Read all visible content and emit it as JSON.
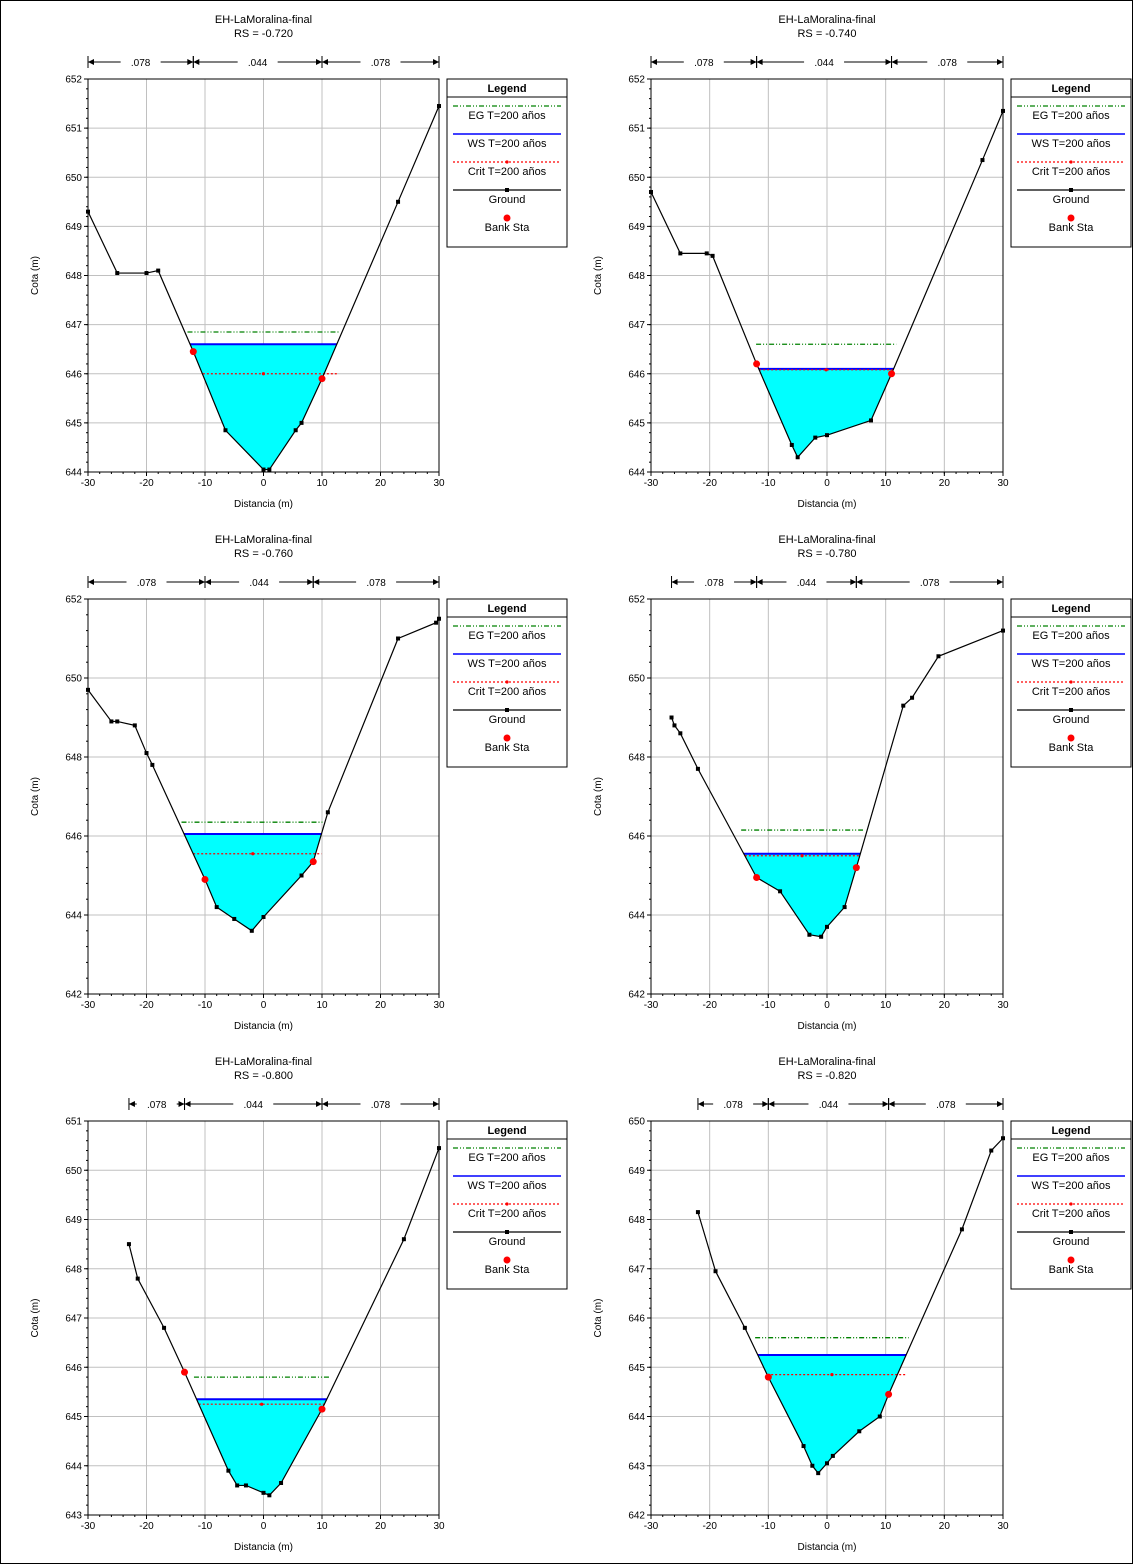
{
  "legend": {
    "title": "Legend",
    "items": [
      {
        "label": "EG T=200 años",
        "color": "#008000",
        "style": "eg"
      },
      {
        "label": "WS T=200 años",
        "color": "#0000ff",
        "style": "ws"
      },
      {
        "label": "Crit T=200 años",
        "color": "#ff0000",
        "style": "crit"
      },
      {
        "label": "Ground",
        "color": "#000000",
        "style": "ground"
      },
      {
        "label": "Bank Sta",
        "color": "#ff0000",
        "style": "bank"
      }
    ]
  },
  "colors": {
    "water": "#00ffff",
    "grid": "#c0c0c0"
  },
  "chart_data": [
    {
      "type": "area",
      "title": "EH-LaMoralina-final",
      "subtitle": "RS = -0.720",
      "xlabel": "Distancia (m)",
      "ylabel": "Cota (m)",
      "xlim": [
        -30,
        30
      ],
      "ylim": [
        644,
        652
      ],
      "xticks": [
        -30,
        -20,
        -10,
        0,
        10,
        20,
        30
      ],
      "yticks": [
        644,
        645,
        646,
        647,
        648,
        649,
        650,
        651,
        652
      ],
      "n_values": [
        {
          "label": ".078",
          "from": -30,
          "to": -12
        },
        {
          "label": ".044",
          "from": -12,
          "to": 10
        },
        {
          "label": ".078",
          "from": 10,
          "to": 30
        }
      ],
      "ground": [
        [
          -30,
          649.3
        ],
        [
          -25,
          648.05
        ],
        [
          -20,
          648.05
        ],
        [
          -18,
          648.1
        ],
        [
          -12,
          646.45
        ],
        [
          -6.5,
          644.85
        ],
        [
          0,
          644.05
        ],
        [
          1,
          644.05
        ],
        [
          5.5,
          644.85
        ],
        [
          6.5,
          645.0
        ],
        [
          10,
          645.9
        ],
        [
          23,
          649.5
        ],
        [
          30,
          651.45
        ]
      ],
      "bank": [
        [
          -12,
          646.45
        ],
        [
          10,
          645.9
        ]
      ],
      "eg": 646.85,
      "ws": 646.6,
      "crit": 646.0
    },
    {
      "type": "area",
      "title": "EH-LaMoralina-final",
      "subtitle": "RS = -0.740",
      "xlabel": "Distancia (m)",
      "ylabel": "Cota (m)",
      "xlim": [
        -30,
        30
      ],
      "ylim": [
        644,
        652
      ],
      "xticks": [
        -30,
        -20,
        -10,
        0,
        10,
        20,
        30
      ],
      "yticks": [
        644,
        645,
        646,
        647,
        648,
        649,
        650,
        651,
        652
      ],
      "n_values": [
        {
          "label": ".078",
          "from": -30,
          "to": -12
        },
        {
          "label": ".044",
          "from": -12,
          "to": 11
        },
        {
          "label": ".078",
          "from": 11,
          "to": 30
        }
      ],
      "ground": [
        [
          -30,
          649.7
        ],
        [
          -25,
          648.45
        ],
        [
          -20.5,
          648.45
        ],
        [
          -19.5,
          648.4
        ],
        [
          -12,
          646.2
        ],
        [
          -6,
          644.55
        ],
        [
          -5,
          644.3
        ],
        [
          -2,
          644.7
        ],
        [
          0,
          644.75
        ],
        [
          7.5,
          645.05
        ],
        [
          11,
          646.0
        ],
        [
          26.5,
          650.35
        ],
        [
          30,
          651.35
        ]
      ],
      "bank": [
        [
          -12,
          646.2
        ],
        [
          11,
          646.0
        ]
      ],
      "eg": 646.6,
      "ws": 646.1,
      "crit": 646.08
    },
    {
      "type": "area",
      "title": "EH-LaMoralina-final",
      "subtitle": "RS = -0.760",
      "xlabel": "Distancia (m)",
      "ylabel": "Cota (m)",
      "xlim": [
        -30,
        30
      ],
      "ylim": [
        642,
        652
      ],
      "xticks": [
        -30,
        -20,
        -10,
        0,
        10,
        20,
        30
      ],
      "yticks": [
        642,
        644,
        646,
        648,
        650,
        652
      ],
      "n_values": [
        {
          "label": ".078",
          "from": -30,
          "to": -10
        },
        {
          "label": ".044",
          "from": -10,
          "to": 8.5
        },
        {
          "label": ".078",
          "from": 8.5,
          "to": 30
        }
      ],
      "ground": [
        [
          -30,
          649.7
        ],
        [
          -26,
          648.9
        ],
        [
          -25,
          648.9
        ],
        [
          -22,
          648.8
        ],
        [
          -20,
          648.1
        ],
        [
          -19,
          647.8
        ],
        [
          -10,
          644.9
        ],
        [
          -8,
          644.2
        ],
        [
          -5,
          643.9
        ],
        [
          -2,
          643.6
        ],
        [
          0,
          643.95
        ],
        [
          6.5,
          645.0
        ],
        [
          8.5,
          645.35
        ],
        [
          11,
          646.6
        ],
        [
          23,
          651.0
        ],
        [
          29.5,
          651.4
        ],
        [
          30,
          651.5
        ]
      ],
      "bank": [
        [
          -10,
          644.9
        ],
        [
          8.5,
          645.35
        ]
      ],
      "eg": 646.35,
      "ws": 646.05,
      "crit": 645.55
    },
    {
      "type": "area",
      "title": "EH-LaMoralina-final",
      "subtitle": "RS = -0.780",
      "xlabel": "Distancia (m)",
      "ylabel": "Cota (m)",
      "xlim": [
        -30,
        30
      ],
      "ylim": [
        642,
        652
      ],
      "xticks": [
        -30,
        -20,
        -10,
        0,
        10,
        20,
        30
      ],
      "yticks": [
        642,
        644,
        646,
        648,
        650,
        652
      ],
      "n_values": [
        {
          "label": ".078",
          "from": -26.5,
          "to": -12
        },
        {
          "label": ".044",
          "from": -12,
          "to": 5
        },
        {
          "label": ".078",
          "from": 5,
          "to": 30
        }
      ],
      "ground": [
        [
          -26.5,
          649.0
        ],
        [
          -26,
          648.8
        ],
        [
          -25,
          648.6
        ],
        [
          -22,
          647.7
        ],
        [
          -12,
          644.95
        ],
        [
          -8,
          644.6
        ],
        [
          -3,
          643.5
        ],
        [
          -1,
          643.45
        ],
        [
          0,
          643.7
        ],
        [
          3,
          644.2
        ],
        [
          5,
          645.2
        ],
        [
          13,
          649.3
        ],
        [
          14.5,
          649.5
        ],
        [
          19,
          650.55
        ],
        [
          30,
          651.2
        ]
      ],
      "bank": [
        [
          -12,
          644.95
        ],
        [
          5,
          645.2
        ]
      ],
      "eg": 646.15,
      "ws": 645.55,
      "crit": 645.5
    },
    {
      "type": "area",
      "title": "EH-LaMoralina-final",
      "subtitle": "RS = -0.800",
      "xlabel": "Distancia (m)",
      "ylabel": "Cota (m)",
      "xlim": [
        -30,
        30
      ],
      "ylim": [
        643,
        651
      ],
      "xticks": [
        -30,
        -20,
        -10,
        0,
        10,
        20,
        30
      ],
      "yticks": [
        643,
        644,
        645,
        646,
        647,
        648,
        649,
        650,
        651
      ],
      "n_values": [
        {
          "label": ".078",
          "from": -23,
          "to": -13.5
        },
        {
          "label": ".044",
          "from": -13.5,
          "to": 10
        },
        {
          "label": ".078",
          "from": 10,
          "to": 30
        }
      ],
      "ground": [
        [
          -23,
          648.5
        ],
        [
          -21.5,
          647.8
        ],
        [
          -17,
          646.8
        ],
        [
          -13.5,
          645.9
        ],
        [
          -6,
          643.9
        ],
        [
          -4.5,
          643.6
        ],
        [
          -3,
          643.6
        ],
        [
          0,
          643.45
        ],
        [
          1,
          643.4
        ],
        [
          3,
          643.65
        ],
        [
          10,
          645.15
        ],
        [
          24,
          648.6
        ],
        [
          30,
          650.45
        ]
      ],
      "bank": [
        [
          -13.5,
          645.9
        ],
        [
          10,
          645.15
        ]
      ],
      "eg": 645.8,
      "ws": 645.35,
      "crit": 645.25
    },
    {
      "type": "area",
      "title": "EH-LaMoralina-final",
      "subtitle": "RS = -0.820",
      "xlabel": "Distancia (m)",
      "ylabel": "Cota (m)",
      "xlim": [
        -30,
        30
      ],
      "ylim": [
        642,
        650
      ],
      "xticks": [
        -30,
        -20,
        -10,
        0,
        10,
        20,
        30
      ],
      "yticks": [
        642,
        643,
        644,
        645,
        646,
        647,
        648,
        649,
        650
      ],
      "n_values": [
        {
          "label": ".078",
          "from": -22,
          "to": -10
        },
        {
          "label": ".044",
          "from": -10,
          "to": 10.5
        },
        {
          "label": ".078",
          "from": 10.5,
          "to": 30
        }
      ],
      "ground": [
        [
          -22,
          648.15
        ],
        [
          -19,
          646.95
        ],
        [
          -14,
          645.8
        ],
        [
          -10,
          644.8
        ],
        [
          -4,
          643.4
        ],
        [
          -2.5,
          643.0
        ],
        [
          -1.5,
          642.85
        ],
        [
          0,
          643.05
        ],
        [
          1,
          643.2
        ],
        [
          5.5,
          643.7
        ],
        [
          9,
          644.0
        ],
        [
          10.5,
          644.45
        ],
        [
          23,
          647.8
        ],
        [
          28,
          649.4
        ],
        [
          30,
          649.65
        ]
      ],
      "bank": [
        [
          -10,
          644.8
        ],
        [
          10.5,
          644.45
        ]
      ],
      "eg": 645.6,
      "ws": 645.25,
      "crit": 644.85
    }
  ]
}
